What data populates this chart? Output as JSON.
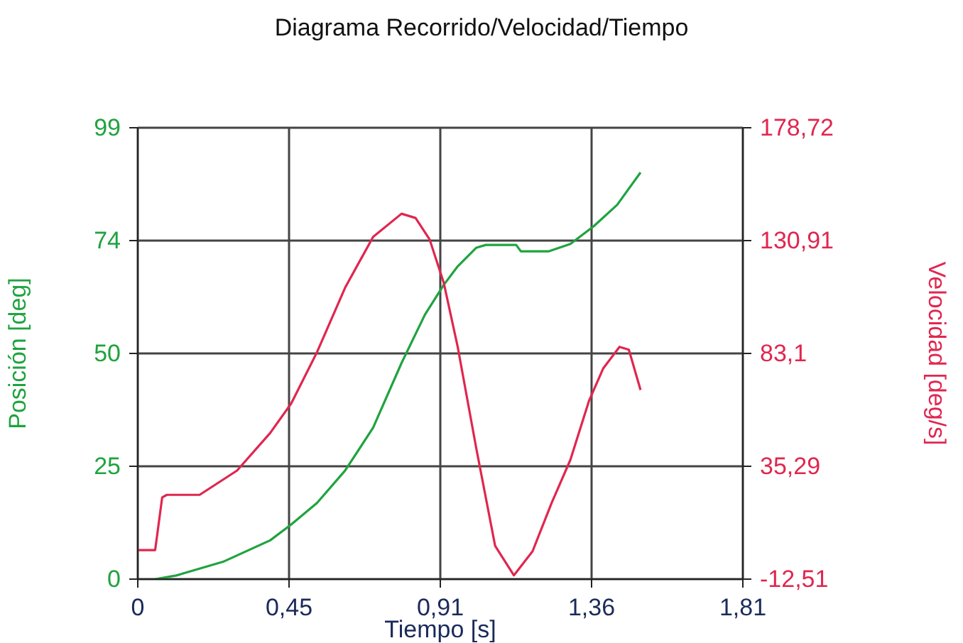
{
  "chart_data": {
    "type": "line",
    "title": "Diagrama Recorrido/Velocidad/Tiempo",
    "xlabel": "Tiempo [s]",
    "ylabel": "Posición [deg]",
    "y2label": "Velocidad [deg/s]",
    "xlim": [
      0,
      1.81
    ],
    "xticks": [
      0,
      {
        "value": 0.4525,
        "label": "0,45"
      },
      {
        "value": 0.905,
        "label": "0,91"
      },
      {
        "value": 1.3575,
        "label": "1,36"
      },
      {
        "value": 1.81,
        "label": "1,81"
      }
    ],
    "ylim": [
      0,
      99
    ],
    "yticks": [
      0,
      {
        "value": 24.75,
        "label": "25"
      },
      {
        "value": 49.5,
        "label": "50"
      },
      {
        "value": 74.25,
        "label": "74"
      },
      99
    ],
    "y2lim": [
      -12.51,
      178.72
    ],
    "y2ticks": [
      {
        "value": -12.51,
        "label": "-12,51"
      },
      {
        "value": 35.29,
        "label": "35,29"
      },
      {
        "value": 83.1,
        "label": "83,1"
      },
      {
        "value": 130.91,
        "label": "130,91"
      },
      {
        "value": 178.72,
        "label": "178,72"
      }
    ],
    "grid": true,
    "legend": false,
    "marker": "none",
    "line_style": "solid",
    "series": [
      {
        "color": "#1fa33f",
        "x": [
          0.052,
          0.115,
          0.255,
          0.396,
          0.459,
          0.536,
          0.62,
          0.704,
          0.789,
          0.859,
          0.915,
          0.957,
          1.013,
          1.041,
          1.132,
          1.146,
          1.23,
          1.294,
          1.364,
          1.434,
          1.504
        ],
        "values": [
          0,
          0.8,
          3.8,
          8.5,
          12.0,
          16.7,
          23.8,
          33.2,
          47.4,
          58,
          64.5,
          68.6,
          72.7,
          73.3,
          73.3,
          71.9,
          71.9,
          73.5,
          77.4,
          82.1,
          89.2
        ]
      },
      {
        "color": "#e0264f",
        "axis": "y2",
        "x": [
          0,
          0.052,
          0.073,
          0.087,
          0.185,
          0.297,
          0.396,
          0.459,
          0.536,
          0.62,
          0.704,
          0.789,
          0.831,
          0.873,
          0.915,
          0.957,
          1.013,
          1.069,
          1.125,
          1.181,
          1.238,
          1.294,
          1.35,
          1.392,
          1.441,
          1.469,
          1.504
        ],
        "values": [
          -0.2,
          -0.2,
          22.1,
          23.2,
          23.2,
          33.5,
          49.4,
          61.9,
          83.6,
          110.9,
          132.5,
          142.3,
          140.5,
          131.4,
          113.2,
          85.9,
          42.6,
          1.6,
          -10.9,
          -0.7,
          19.8,
          38.0,
          63.1,
          76.7,
          85.9,
          84.7,
          67.6
        ]
      }
    ]
  }
}
